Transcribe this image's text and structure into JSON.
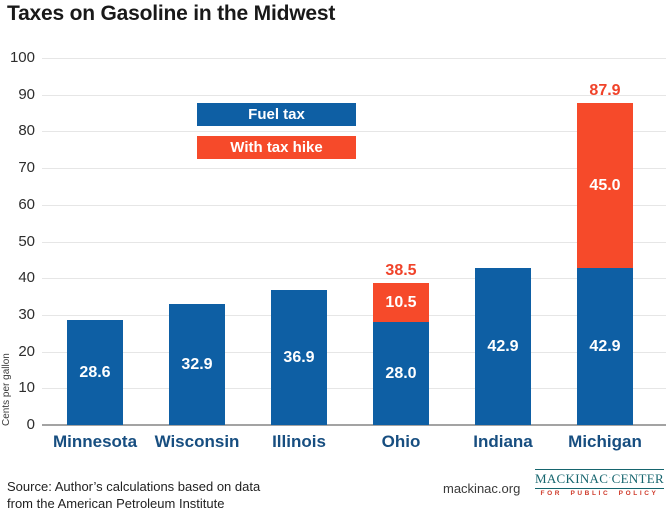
{
  "title": "Taxes on Gasoline in the Midwest",
  "colors": {
    "fuel_tax": "#0e5fa4",
    "tax_hike": "#f64a2a",
    "total_label": "#f0432a",
    "state_label": "#174e80",
    "grid": "#e6e6e6",
    "axis": "#a3a3a3",
    "logo_teal": "#16656e",
    "logo_icon_teal": "#1d97a1",
    "logo_red": "#cf3a2a"
  },
  "chart_data": {
    "type": "bar",
    "stacked": true,
    "title": "Taxes on Gasoline in the Midwest",
    "ylabel": "Cents per gallon",
    "xlabel": "",
    "ylim": [
      0,
      100
    ],
    "yticks": [
      0,
      10,
      20,
      30,
      40,
      50,
      60,
      70,
      80,
      90,
      100
    ],
    "grid": true,
    "legend_position": "upper-left-inside",
    "categories": [
      "Minnesota",
      "Wisconsin",
      "Illinois",
      "Ohio",
      "Indiana",
      "Michigan"
    ],
    "series": [
      {
        "name": "Fuel tax",
        "color_key": "fuel_tax",
        "values": [
          28.6,
          32.9,
          36.9,
          28.0,
          42.9,
          42.9
        ]
      },
      {
        "name": "With tax hike",
        "color_key": "tax_hike",
        "values": [
          0,
          0,
          0,
          10.5,
          0,
          45.0
        ]
      }
    ],
    "stack_totals_labeled": [
      null,
      null,
      null,
      38.5,
      null,
      87.9
    ],
    "legend": [
      {
        "label": "Fuel tax",
        "color_key": "fuel_tax"
      },
      {
        "label": "With tax hike",
        "color_key": "tax_hike"
      }
    ]
  },
  "footer": {
    "source_line1": "Source: Author’s calculations based on data",
    "source_line2": "from the American Petroleum Institute",
    "website": "mackinac.org",
    "logo": {
      "name1": "MACKINAC",
      "name2": "CENTER",
      "tagline": "FOR PUBLIC POLICY",
      "icon": "michigan-state-icon"
    }
  }
}
